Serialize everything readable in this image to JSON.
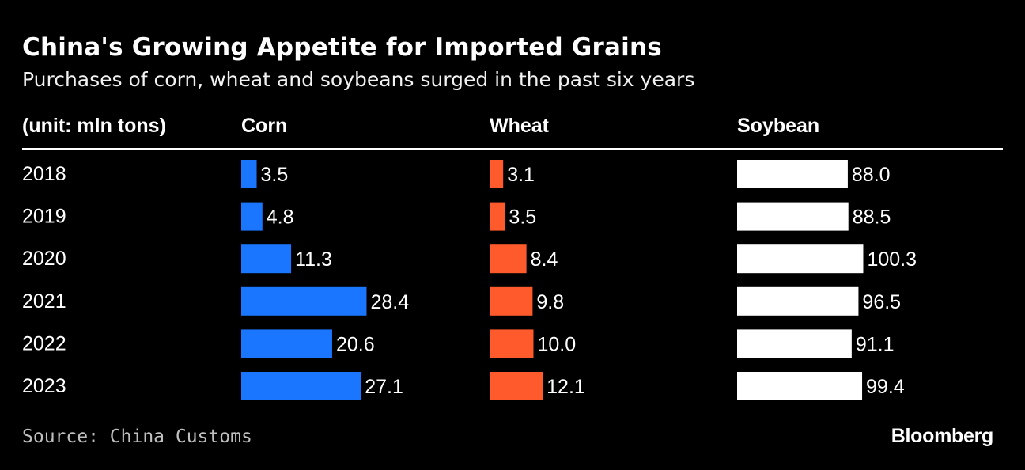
{
  "title": "China's Growing Appetite for Imported Grains",
  "subtitle": "Purchases of corn, wheat and soybeans surged in the past six years",
  "source": "Source: China Customs",
  "brand": "Bloomberg",
  "chart_data": {
    "type": "bar",
    "unit_label": "(unit: mln tons)",
    "categories": [
      "2018",
      "2019",
      "2020",
      "2021",
      "2022",
      "2023"
    ],
    "series": [
      {
        "name": "Corn",
        "color": "#1a75ff",
        "values": [
          3.5,
          4.8,
          11.3,
          28.4,
          20.6,
          27.1
        ],
        "labels": [
          "3.5",
          "4.8",
          "11.3",
          "28.4",
          "20.6",
          "27.1"
        ]
      },
      {
        "name": "Wheat",
        "color": "#ff5a2b",
        "values": [
          3.1,
          3.5,
          8.4,
          9.8,
          10.0,
          12.1
        ],
        "labels": [
          "3.1",
          "3.5",
          "8.4",
          "9.8",
          "10.0",
          "12.1"
        ]
      },
      {
        "name": "Soybean",
        "color": "#ffffff",
        "values": [
          88.0,
          88.5,
          100.3,
          96.5,
          91.1,
          99.4
        ],
        "labels": [
          "88.0",
          "88.5",
          "100.3",
          "96.5",
          "91.1",
          "99.4"
        ]
      }
    ]
  }
}
